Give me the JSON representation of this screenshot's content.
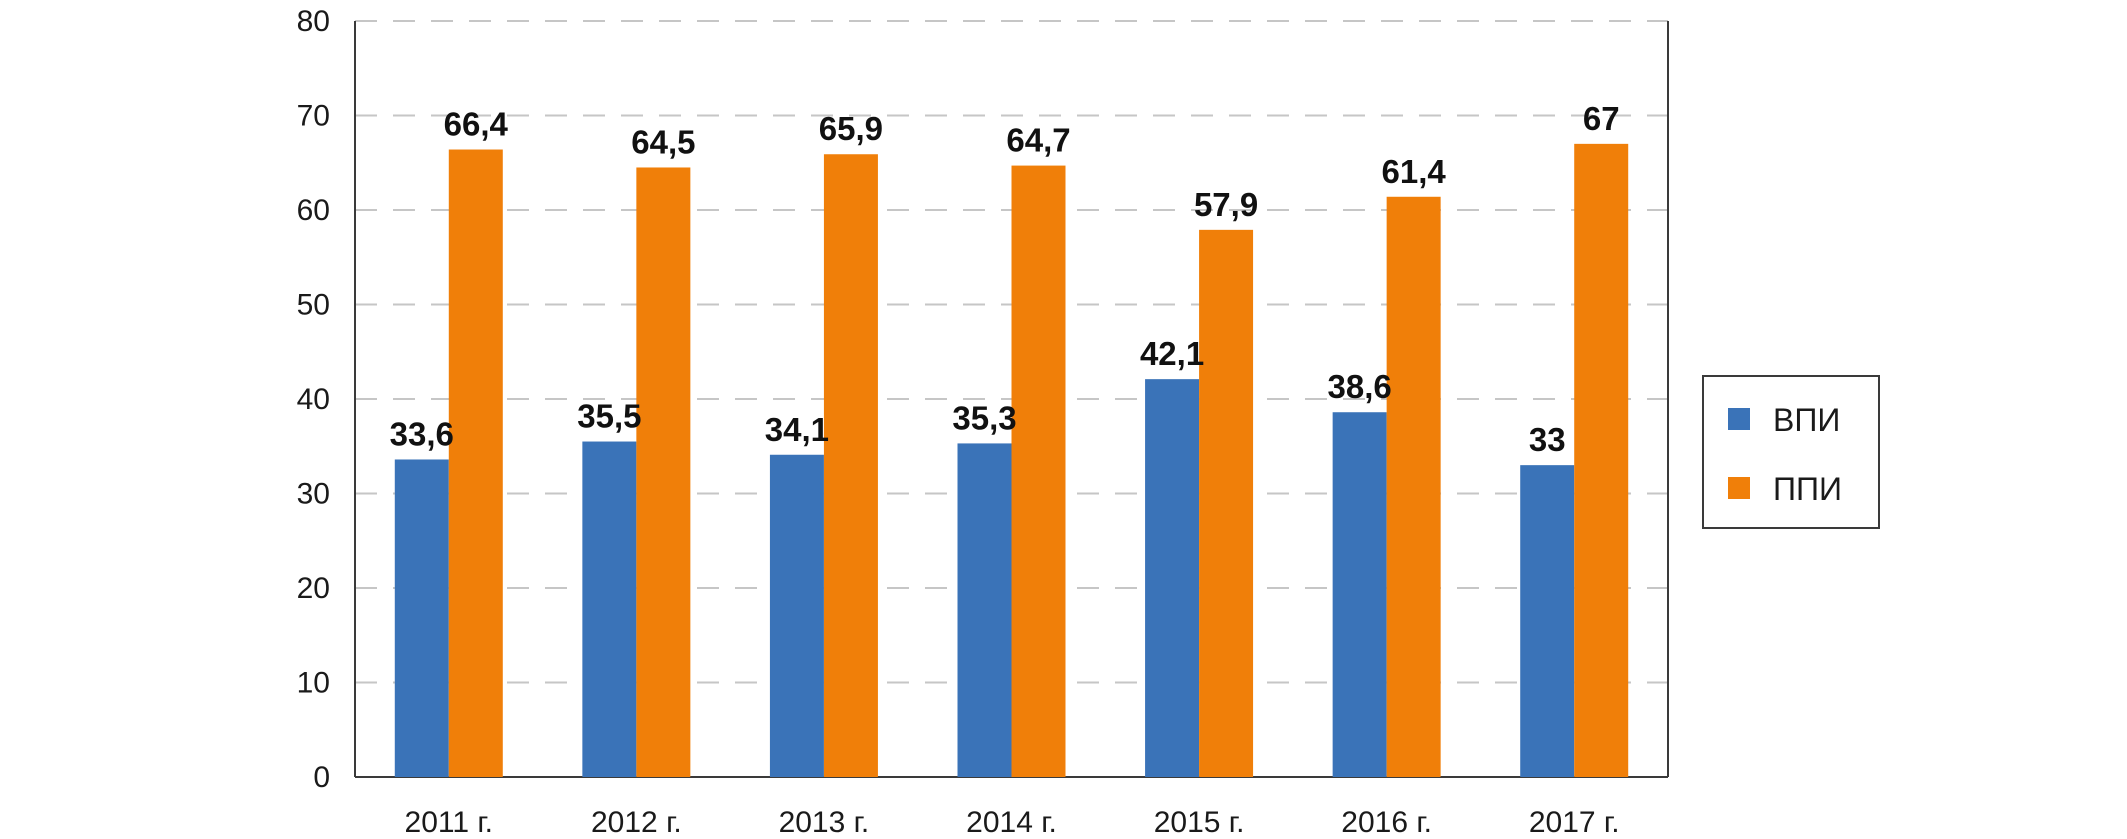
{
  "chart_data": {
    "type": "bar",
    "title": "",
    "xlabel": "",
    "ylabel": "",
    "ylim": [
      0,
      80
    ],
    "y_ticks": [
      "0",
      "10",
      "20",
      "30",
      "40",
      "50",
      "60",
      "70",
      "80"
    ],
    "y_tick_values": [
      0,
      10,
      20,
      30,
      40,
      50,
      60,
      70,
      80
    ],
    "grid": "horizontal-dashed",
    "legend_position": "right",
    "categories": [
      "2011 г.",
      "2012 г.",
      "2013 г.",
      "2014 г.",
      "2015 г.",
      "2016 г.",
      "2017 г."
    ],
    "series": [
      {
        "name": "ВПИ",
        "color": "#3a73b8",
        "values": [
          33.6,
          35.5,
          34.1,
          35.3,
          42.1,
          38.6,
          33
        ],
        "labels": [
          "33,6",
          "35,5",
          "34,1",
          "35,3",
          "42,1",
          "38,6",
          "33"
        ]
      },
      {
        "name": "ППИ",
        "color": "#f07f09",
        "values": [
          66.4,
          64.5,
          65.9,
          64.7,
          57.9,
          61.4,
          67
        ],
        "labels": [
          "66,4",
          "64,5",
          "65,9",
          "64,7",
          "57,9",
          "61,4",
          "67"
        ]
      }
    ]
  }
}
